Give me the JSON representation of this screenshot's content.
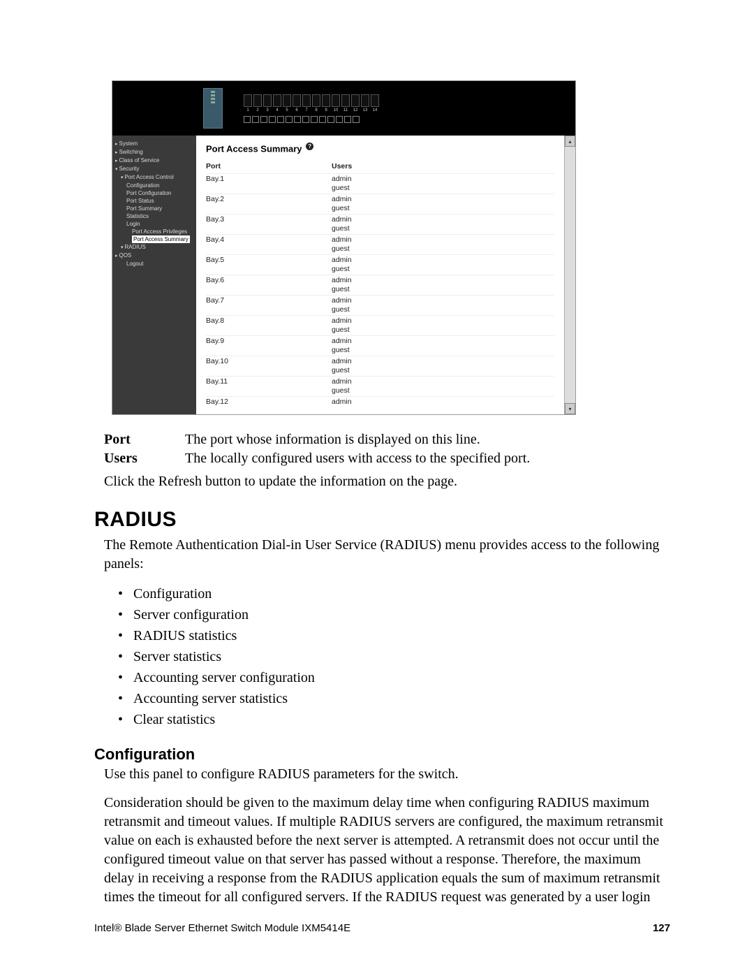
{
  "screenshot": {
    "header": {
      "port_count": 14,
      "port_numbers": [
        "1",
        "2",
        "3",
        "4",
        "5",
        "6",
        "7",
        "8",
        "9",
        "10",
        "11",
        "12",
        "13",
        "14"
      ]
    },
    "sidebar": {
      "items": [
        {
          "label": "System",
          "cls": "lvl0"
        },
        {
          "label": "Switching",
          "cls": "lvl0"
        },
        {
          "label": "Class of Service",
          "cls": "lvl0"
        },
        {
          "label": "Security",
          "cls": "lvl0 open"
        },
        {
          "label": "Port Access Control",
          "cls": "lvl1"
        },
        {
          "label": "Configuration",
          "cls": "lvl2"
        },
        {
          "label": "Port Configuration",
          "cls": "lvl2"
        },
        {
          "label": "Port Status",
          "cls": "lvl2"
        },
        {
          "label": "Port Summary",
          "cls": "lvl2"
        },
        {
          "label": "Statistics",
          "cls": "lvl2"
        },
        {
          "label": "Login",
          "cls": "lvl2"
        },
        {
          "label": "Port Access Privileges",
          "cls": "lvl3"
        },
        {
          "label": "Port Access Summary",
          "cls": "lvl3 sel"
        },
        {
          "label": "RADIUS",
          "cls": "lvl1"
        },
        {
          "label": "QOS",
          "cls": "lvl0"
        },
        {
          "label": "Logout",
          "cls": "lvl2"
        }
      ]
    },
    "main": {
      "title": "Port Access Summary",
      "columns": {
        "port": "Port",
        "users": "Users"
      },
      "rows": [
        {
          "port": "Bay.1",
          "users": [
            "admin",
            "guest"
          ]
        },
        {
          "port": "Bay.2",
          "users": [
            "admin",
            "guest"
          ]
        },
        {
          "port": "Bay.3",
          "users": [
            "admin",
            "guest"
          ]
        },
        {
          "port": "Bay.4",
          "users": [
            "admin",
            "guest"
          ]
        },
        {
          "port": "Bay.5",
          "users": [
            "admin",
            "guest"
          ]
        },
        {
          "port": "Bay.6",
          "users": [
            "admin",
            "guest"
          ]
        },
        {
          "port": "Bay.7",
          "users": [
            "admin",
            "guest"
          ]
        },
        {
          "port": "Bay.8",
          "users": [
            "admin",
            "guest"
          ]
        },
        {
          "port": "Bay.9",
          "users": [
            "admin",
            "guest"
          ]
        },
        {
          "port": "Bay.10",
          "users": [
            "admin",
            "guest"
          ]
        },
        {
          "port": "Bay.11",
          "users": [
            "admin",
            "guest"
          ]
        },
        {
          "port": "Bay.12",
          "users": [
            "admin"
          ]
        }
      ]
    }
  },
  "definitions": [
    {
      "term": "Port",
      "desc": "The port whose information is displayed on this line."
    },
    {
      "term": "Users",
      "desc": "The locally configured users with access to the specified port."
    }
  ],
  "refresh_note": "Click the Refresh button to update the information on the page.",
  "radius": {
    "heading": "RADIUS",
    "intro": "The Remote Authentication Dial-in User Service (RADIUS) menu provides access to the following panels:",
    "items": [
      "Configuration",
      "Server configuration",
      "RADIUS statistics",
      "Server statistics",
      "Accounting server configuration",
      "Accounting server statistics",
      "Clear statistics"
    ]
  },
  "config": {
    "heading": "Configuration",
    "p1": "Use this panel to configure RADIUS parameters for the switch.",
    "p2": "Consideration should be given to the maximum delay time when configuring RADIUS maximum retransmit and timeout values. If multiple RADIUS servers are configured, the maximum retransmit value on each is exhausted before the next server is attempted. A retransmit does not occur until the configured timeout value on that server has passed without a response. Therefore, the maximum delay in receiving a response from the RADIUS application equals the sum of maximum retransmit times the timeout for all configured servers. If the RADIUS request was generated by a user login"
  },
  "footer": {
    "left": "Intel® Blade Server Ethernet Switch Module IXM5414E",
    "page": "127"
  },
  "colors": {
    "scr_header_bg": "#000000",
    "scr_sidebar_bg": "#3a3a3a",
    "scr_sidebar_fg": "#d8d8d8",
    "scr_main_bg": "#ffffff",
    "body_text": "#000000"
  }
}
